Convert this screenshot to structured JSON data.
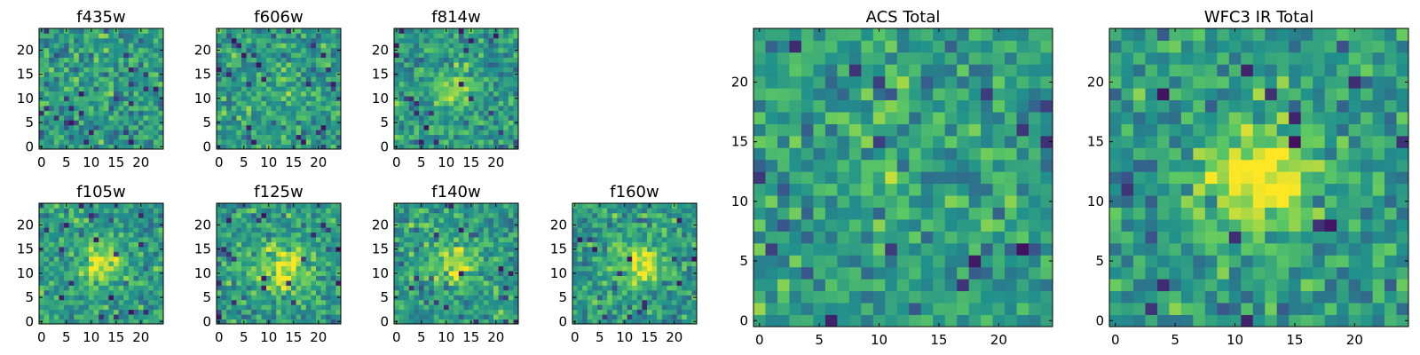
{
  "chart_data": {
    "type": "heatmap",
    "colormap": "viridis",
    "colormap_stops": [
      "#440154",
      "#3b528b",
      "#21918c",
      "#5ec962",
      "#fde725"
    ],
    "grid_size": 25,
    "small_panel_ticks": [
      0,
      5,
      10,
      15,
      20
    ],
    "large_panel_ticks": [
      0,
      5,
      10,
      15,
      20
    ],
    "panels": [
      {
        "title": "f435w",
        "size": "small",
        "xlim": [
          0,
          25
        ],
        "ylim": [
          0,
          25
        ],
        "source": {
          "x": 12,
          "y": 12,
          "sigma": 4,
          "amplitude": 0.05
        },
        "seed": 11
      },
      {
        "title": "f606w",
        "size": "small",
        "xlim": [
          0,
          25
        ],
        "ylim": [
          0,
          25
        ],
        "source": {
          "x": 12,
          "y": 12,
          "sigma": 4,
          "amplitude": 0.1
        },
        "seed": 23
      },
      {
        "title": "f814w",
        "size": "small",
        "xlim": [
          0,
          25
        ],
        "ylim": [
          0,
          25
        ],
        "source": {
          "x": 12,
          "y": 12,
          "sigma": 3,
          "amplitude": 0.25
        },
        "seed": 37
      },
      {
        "title": "f105w",
        "size": "small",
        "xlim": [
          0,
          25
        ],
        "ylim": [
          0,
          25
        ],
        "source": {
          "x": 12,
          "y": 12,
          "sigma": 3,
          "amplitude": 0.45
        },
        "seed": 41
      },
      {
        "title": "f125w",
        "size": "small",
        "xlim": [
          0,
          25
        ],
        "ylim": [
          0,
          25
        ],
        "source": {
          "x": 13,
          "y": 11,
          "sigma": 4,
          "amplitude": 0.35
        },
        "seed": 53
      },
      {
        "title": "f140w",
        "size": "small",
        "xlim": [
          0,
          25
        ],
        "ylim": [
          0,
          25
        ],
        "source": {
          "x": 12,
          "y": 12,
          "sigma": 3,
          "amplitude": 0.4
        },
        "seed": 67
      },
      {
        "title": "f160w",
        "size": "small",
        "xlim": [
          0,
          25
        ],
        "ylim": [
          0,
          25
        ],
        "source": {
          "x": 13,
          "y": 12,
          "sigma": 3,
          "amplitude": 0.45
        },
        "seed": 79
      },
      {
        "title": "ACS Total",
        "size": "large",
        "xlim": [
          0,
          25
        ],
        "ylim": [
          0,
          25
        ],
        "source": {
          "x": 12,
          "y": 12,
          "sigma": 4,
          "amplitude": 0.1
        },
        "seed": 97
      },
      {
        "title": "WFC3 IR Total",
        "size": "large",
        "xlim": [
          0,
          25
        ],
        "ylim": [
          0,
          25
        ],
        "source": {
          "x": 12,
          "y": 12,
          "sigma": 3,
          "amplitude": 0.55
        },
        "seed": 131
      }
    ]
  }
}
